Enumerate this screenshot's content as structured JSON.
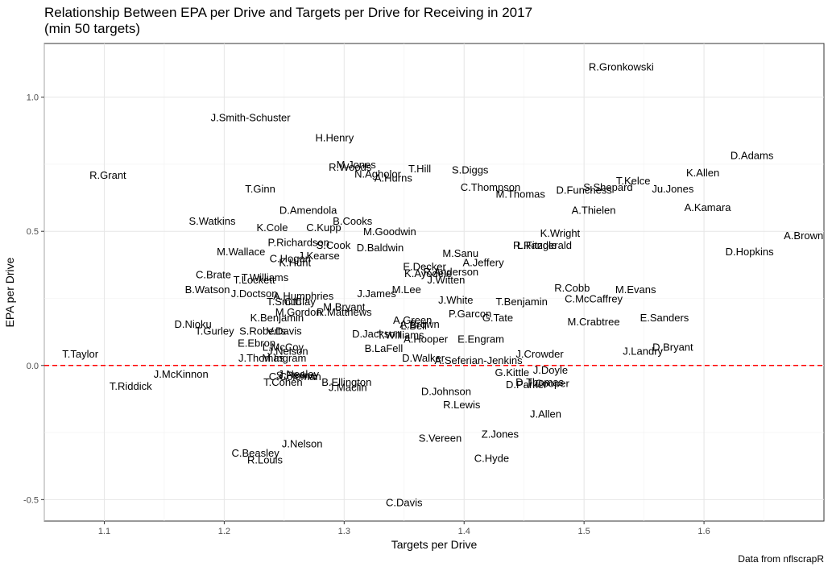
{
  "chart_data": {
    "type": "scatter",
    "title": "Relationship Between EPA per Drive and Targets per Drive for Receiving in 2017",
    "subtitle": "(min 50 targets)",
    "xlabel": "Targets per Drive",
    "ylabel": "EPA per Drive",
    "caption": "Data from nflscrapR",
    "xlim": [
      1.05,
      1.7
    ],
    "ylim": [
      -0.58,
      1.2
    ],
    "xticks": [
      1.1,
      1.2,
      1.3,
      1.4,
      1.5,
      1.6
    ],
    "xtick_labels": [
      "1.1",
      "1.2",
      "1.3",
      "1.4",
      "1.5",
      "1.6"
    ],
    "yticks": [
      -0.5,
      0.0,
      0.5,
      1.0
    ],
    "ytick_labels": [
      "-0.5",
      "0.0",
      "0.5",
      "1.0"
    ],
    "grid": true,
    "reference_line": {
      "y": 0,
      "style": "dashed",
      "color": "#ff0000"
    },
    "points": [
      {
        "label": "R.Gronkowski",
        "x": 1.531,
        "y": 1.115
      },
      {
        "label": "J.Smith-Schuster",
        "x": 1.222,
        "y": 0.925
      },
      {
        "label": "H.Henry",
        "x": 1.292,
        "y": 0.85
      },
      {
        "label": "D.Adams",
        "x": 1.64,
        "y": 0.785
      },
      {
        "label": "R.Grant",
        "x": 1.103,
        "y": 0.71
      },
      {
        "label": "M.Jones",
        "x": 1.31,
        "y": 0.75
      },
      {
        "label": "R.Woods",
        "x": 1.305,
        "y": 0.74
      },
      {
        "label": "T.Hill",
        "x": 1.363,
        "y": 0.735
      },
      {
        "label": "N.Agholor",
        "x": 1.328,
        "y": 0.715
      },
      {
        "label": "A.Hurns",
        "x": 1.341,
        "y": 0.7
      },
      {
        "label": "S.Diggs",
        "x": 1.405,
        "y": 0.73
      },
      {
        "label": "K.Allen",
        "x": 1.599,
        "y": 0.72
      },
      {
        "label": "T.Kelce",
        "x": 1.541,
        "y": 0.69
      },
      {
        "label": "T.Ginn",
        "x": 1.23,
        "y": 0.66
      },
      {
        "label": "C.Thompson",
        "x": 1.422,
        "y": 0.665
      },
      {
        "label": "S.Shepard",
        "x": 1.52,
        "y": 0.665
      },
      {
        "label": "Ju.Jones",
        "x": 1.574,
        "y": 0.66
      },
      {
        "label": "D.Funchess",
        "x": 1.5,
        "y": 0.655
      },
      {
        "label": "M.Thomas",
        "x": 1.447,
        "y": 0.64
      },
      {
        "label": "D.Amendola",
        "x": 1.27,
        "y": 0.58
      },
      {
        "label": "A.Kamara",
        "x": 1.603,
        "y": 0.59
      },
      {
        "label": "A.Thielen",
        "x": 1.508,
        "y": 0.58
      },
      {
        "label": "S.Watkins",
        "x": 1.19,
        "y": 0.54
      },
      {
        "label": "B.Cooks",
        "x": 1.307,
        "y": 0.54
      },
      {
        "label": "K.Cole",
        "x": 1.24,
        "y": 0.515
      },
      {
        "label": "C.Kupp",
        "x": 1.283,
        "y": 0.515
      },
      {
        "label": "M.Goodwin",
        "x": 1.338,
        "y": 0.5
      },
      {
        "label": "K.Wright",
        "x": 1.48,
        "y": 0.495
      },
      {
        "label": "A.Brown",
        "x": 1.683,
        "y": 0.485
      },
      {
        "label": "P.Richardson",
        "x": 1.262,
        "y": 0.46
      },
      {
        "label": "S.Cook",
        "x": 1.291,
        "y": 0.45
      },
      {
        "label": "D.Baldwin",
        "x": 1.33,
        "y": 0.44
      },
      {
        "label": "L.Fitzgerald",
        "x": 1.467,
        "y": 0.45
      },
      {
        "label": "R.Randle",
        "x": 1.459,
        "y": 0.45
      },
      {
        "label": "M.Wallace",
        "x": 1.214,
        "y": 0.425
      },
      {
        "label": "M.Sanu",
        "x": 1.397,
        "y": 0.42
      },
      {
        "label": "D.Hopkins",
        "x": 1.638,
        "y": 0.425
      },
      {
        "label": "J.Kearse",
        "x": 1.279,
        "y": 0.41
      },
      {
        "label": "C.Hogan",
        "x": 1.255,
        "y": 0.4
      },
      {
        "label": "K.Hunt",
        "x": 1.259,
        "y": 0.385
      },
      {
        "label": "A.Jeffery",
        "x": 1.416,
        "y": 0.385
      },
      {
        "label": "E.Decker",
        "x": 1.367,
        "y": 0.37
      },
      {
        "label": "R.Anderson",
        "x": 1.389,
        "y": 0.35
      },
      {
        "label": "K.Ayodele",
        "x": 1.37,
        "y": 0.345
      },
      {
        "label": "C.Brate",
        "x": 1.191,
        "y": 0.34
      },
      {
        "label": "T.Williams",
        "x": 1.234,
        "y": 0.33
      },
      {
        "label": "T.Lockett",
        "x": 1.225,
        "y": 0.32
      },
      {
        "label": "J.Witten",
        "x": 1.385,
        "y": 0.32
      },
      {
        "label": "R.Cobb",
        "x": 1.49,
        "y": 0.29
      },
      {
        "label": "B.Watson",
        "x": 1.186,
        "y": 0.285
      },
      {
        "label": "M.Lee",
        "x": 1.352,
        "y": 0.285
      },
      {
        "label": "M.Evans",
        "x": 1.543,
        "y": 0.285
      },
      {
        "label": "J.Doctson",
        "x": 1.225,
        "y": 0.27
      },
      {
        "label": "J.James",
        "x": 1.327,
        "y": 0.27
      },
      {
        "label": "A.Humphries",
        "x": 1.266,
        "y": 0.26
      },
      {
        "label": "C.McCaffrey",
        "x": 1.508,
        "y": 0.25
      },
      {
        "label": "J.White",
        "x": 1.393,
        "y": 0.245
      },
      {
        "label": "T.Benjamin",
        "x": 1.448,
        "y": 0.24
      },
      {
        "label": "T.Smith",
        "x": 1.25,
        "y": 0.24
      },
      {
        "label": "C.Clay",
        "x": 1.263,
        "y": 0.24
      },
      {
        "label": "M.Bryant",
        "x": 1.3,
        "y": 0.22
      },
      {
        "label": "M.Gordon",
        "x": 1.262,
        "y": 0.2
      },
      {
        "label": "R.Matthews",
        "x": 1.3,
        "y": 0.2
      },
      {
        "label": "P.Garcon",
        "x": 1.405,
        "y": 0.195
      },
      {
        "label": "K.Benjamin",
        "x": 1.244,
        "y": 0.18
      },
      {
        "label": "G.Tate",
        "x": 1.428,
        "y": 0.18
      },
      {
        "label": "E.Sanders",
        "x": 1.567,
        "y": 0.18
      },
      {
        "label": "A.Green",
        "x": 1.357,
        "y": 0.17
      },
      {
        "label": "D.Nioku",
        "x": 1.174,
        "y": 0.155
      },
      {
        "label": "M.Crabtree",
        "x": 1.508,
        "y": 0.165
      },
      {
        "label": "L.Bell",
        "x": 1.358,
        "y": 0.15
      },
      {
        "label": "A.Brown2",
        "x": 1.363,
        "y": 0.155
      },
      {
        "label": "T.Gurley",
        "x": 1.192,
        "y": 0.13
      },
      {
        "label": "S.Roberts",
        "x": 1.232,
        "y": 0.13
      },
      {
        "label": "V.Davis",
        "x": 1.25,
        "y": 0.13
      },
      {
        "label": "D.Jackson",
        "x": 1.327,
        "y": 0.12
      },
      {
        "label": "T.Williams2",
        "x": 1.347,
        "y": 0.115
      },
      {
        "label": "A.Hooper",
        "x": 1.368,
        "y": 0.1
      },
      {
        "label": "E.Engram",
        "x": 1.414,
        "y": 0.1
      },
      {
        "label": "E.Ebron",
        "x": 1.227,
        "y": 0.085
      },
      {
        "label": "L.McCoy",
        "x": 1.249,
        "y": 0.07
      },
      {
        "label": "J.Nelson",
        "x": 1.253,
        "y": 0.055
      },
      {
        "label": "B.LaFell",
        "x": 1.333,
        "y": 0.065
      },
      {
        "label": "D.Bryant",
        "x": 1.574,
        "y": 0.07
      },
      {
        "label": "J.Landry",
        "x": 1.549,
        "y": 0.055
      },
      {
        "label": "T.Taylor",
        "x": 1.08,
        "y": 0.045
      },
      {
        "label": "J.Crowder",
        "x": 1.463,
        "y": 0.045
      },
      {
        "label": "J.Thomas",
        "x": 1.231,
        "y": 0.03
      },
      {
        "label": "M.Ingram",
        "x": 1.25,
        "y": 0.03
      },
      {
        "label": "D.Walker",
        "x": 1.366,
        "y": 0.03
      },
      {
        "label": "A.Seferian-Jenkins",
        "x": 1.412,
        "y": 0.02
      },
      {
        "label": "J.Doyle",
        "x": 1.472,
        "y": -0.015
      },
      {
        "label": "J.McKinnon",
        "x": 1.164,
        "y": -0.03
      },
      {
        "label": "G.Kittle",
        "x": 1.44,
        "y": -0.025
      },
      {
        "label": "S.Perine",
        "x": 1.26,
        "y": -0.035
      },
      {
        "label": "C.Coleman",
        "x": 1.259,
        "y": -0.04
      },
      {
        "label": "J.Nealey",
        "x": 1.262,
        "y": -0.03
      },
      {
        "label": "D.Thomas",
        "x": 1.463,
        "y": -0.06
      },
      {
        "label": "J.Cooper",
        "x": 1.47,
        "y": -0.065
      },
      {
        "label": "D.Parker",
        "x": 1.452,
        "y": -0.07
      },
      {
        "label": "T.Riddick",
        "x": 1.122,
        "y": -0.075
      },
      {
        "label": "T.Cohen",
        "x": 1.249,
        "y": -0.06
      },
      {
        "label": "B.Ellington",
        "x": 1.302,
        "y": -0.06
      },
      {
        "label": "J.Maclin",
        "x": 1.303,
        "y": -0.08
      },
      {
        "label": "D.Johnson",
        "x": 1.385,
        "y": -0.095
      },
      {
        "label": "R.Lewis",
        "x": 1.398,
        "y": -0.145
      },
      {
        "label": "J.Allen",
        "x": 1.468,
        "y": -0.18
      },
      {
        "label": "Z.Jones",
        "x": 1.43,
        "y": -0.255
      },
      {
        "label": "S.Vereen",
        "x": 1.38,
        "y": -0.27
      },
      {
        "label": "J.Nelson2",
        "x": 1.265,
        "y": -0.29
      },
      {
        "label": "C.Beasley",
        "x": 1.226,
        "y": -0.325
      },
      {
        "label": "C.Hyde",
        "x": 1.423,
        "y": -0.345
      },
      {
        "label": "R.Louis",
        "x": 1.234,
        "y": -0.35
      },
      {
        "label": "C.Davis",
        "x": 1.35,
        "y": -0.51
      }
    ]
  }
}
